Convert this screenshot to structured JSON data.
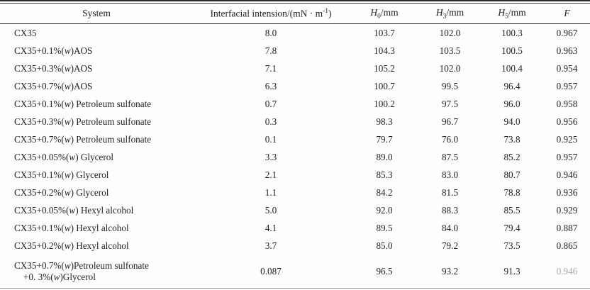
{
  "table": {
    "headers": {
      "system": "System",
      "ift": [
        {
          "t": "Interfacial intension/(mN · m"
        },
        {
          "t": "-1",
          "sup": true
        },
        {
          "t": ")"
        }
      ],
      "h0": [
        {
          "t": "H",
          "italic": true
        },
        {
          "t": "0",
          "sub": true
        },
        {
          "t": "/mm"
        }
      ],
      "h3": [
        {
          "t": "H",
          "italic": true
        },
        {
          "t": "3",
          "sub": true
        },
        {
          "t": "/mm"
        }
      ],
      "h5": [
        {
          "t": "H",
          "italic": true
        },
        {
          "t": "5",
          "sub": true
        },
        {
          "t": "/mm"
        }
      ],
      "f": [
        {
          "t": "F",
          "italic": true
        }
      ]
    },
    "rows": [
      {
        "system": [
          {
            "t": "CX35"
          }
        ],
        "ift": "8.0",
        "h0": "103.7",
        "h3": "102.0",
        "h5": "100.3",
        "f": "0.967"
      },
      {
        "system": [
          {
            "t": "CX35+0.1%("
          },
          {
            "t": "w",
            "italic": true
          },
          {
            "t": ")AOS"
          }
        ],
        "ift": "7.8",
        "h0": "104.3",
        "h3": "103.5",
        "h5": "100.5",
        "f": "0.963"
      },
      {
        "system": [
          {
            "t": "CX35+0.3%("
          },
          {
            "t": "w",
            "italic": true
          },
          {
            "t": ")AOS"
          }
        ],
        "ift": "7.1",
        "h0": "105.2",
        "h3": "102.0",
        "h5": "100.4",
        "f": "0.954"
      },
      {
        "system": [
          {
            "t": "CX35+0.7%("
          },
          {
            "t": "w",
            "italic": true
          },
          {
            "t": ")AOS"
          }
        ],
        "ift": "6.3",
        "h0": "100.7",
        "h3": "99.5",
        "h5": "96.4",
        "f": "0.957"
      },
      {
        "system": [
          {
            "t": "CX35+0.1%("
          },
          {
            "t": "w",
            "italic": true
          },
          {
            "t": ") Petroleum sulfonate"
          }
        ],
        "ift": "0.7",
        "h0": "100.2",
        "h3": "97.5",
        "h5": "96.0",
        "f": "0.958"
      },
      {
        "system": [
          {
            "t": "CX35+0.3%("
          },
          {
            "t": "w",
            "italic": true
          },
          {
            "t": ") Petroleum sulfonate"
          }
        ],
        "ift": "0.3",
        "h0": "98.3",
        "h3": "96.7",
        "h5": "94.0",
        "f": "0.956"
      },
      {
        "system": [
          {
            "t": "CX35+0.7%("
          },
          {
            "t": "w",
            "italic": true
          },
          {
            "t": ") Petroleum sulfonate"
          }
        ],
        "ift": "0.1",
        "h0": "79.7",
        "h3": "76.0",
        "h5": "73.8",
        "f": "0.925"
      },
      {
        "system": [
          {
            "t": "CX35+0.05%("
          },
          {
            "t": "w",
            "italic": true
          },
          {
            "t": ") Glycerol"
          }
        ],
        "ift": "3.3",
        "h0": "89.0",
        "h3": "87.5",
        "h5": "85.2",
        "f": "0.957"
      },
      {
        "system": [
          {
            "t": "CX35+0.1%("
          },
          {
            "t": "w",
            "italic": true
          },
          {
            "t": ") Glycerol"
          }
        ],
        "ift": "2.1",
        "h0": "85.3",
        "h3": "83.0",
        "h5": "80.7",
        "f": "0.946"
      },
      {
        "system": [
          {
            "t": "CX35+0.2%("
          },
          {
            "t": "w",
            "italic": true
          },
          {
            "t": ") Glycerol"
          }
        ],
        "ift": "1.1",
        "h0": "84.2",
        "h3": "81.5",
        "h5": "78.8",
        "f": "0.936"
      },
      {
        "system": [
          {
            "t": "CX35+0.05%("
          },
          {
            "t": "w",
            "italic": true
          },
          {
            "t": ") Hexyl alcohol"
          }
        ],
        "ift": "5.0",
        "h0": "92.0",
        "h3": "88.3",
        "h5": "85.5",
        "f": "0.929"
      },
      {
        "system": [
          {
            "t": "CX35+0.1%("
          },
          {
            "t": "w",
            "italic": true
          },
          {
            "t": ") Hexyl alcohol"
          }
        ],
        "ift": "4.1",
        "h0": "89.5",
        "h3": "84.0",
        "h5": "79.4",
        "f": "0.887"
      },
      {
        "system": [
          {
            "t": "CX35+0.2%("
          },
          {
            "t": "w",
            "italic": true
          },
          {
            "t": ") Hexyl alcohol"
          }
        ],
        "ift": "3.7",
        "h0": "85.0",
        "h3": "79.2",
        "h5": "73.5",
        "f": "0.865"
      },
      {
        "system": [
          [
            {
              "t": "CX35+0.7%("
            },
            {
              "t": "w",
              "italic": true
            },
            {
              "t": ")Petroleum sulfonate"
            }
          ],
          [
            {
              "t": "+0. 3%("
            },
            {
              "t": "w",
              "italic": true
            },
            {
              "t": ")Glycerol"
            }
          ]
        ],
        "ift": "0.087",
        "h0": "96.5",
        "h3": "93.2",
        "h5": "91.3",
        "f": "0.946"
      }
    ]
  }
}
